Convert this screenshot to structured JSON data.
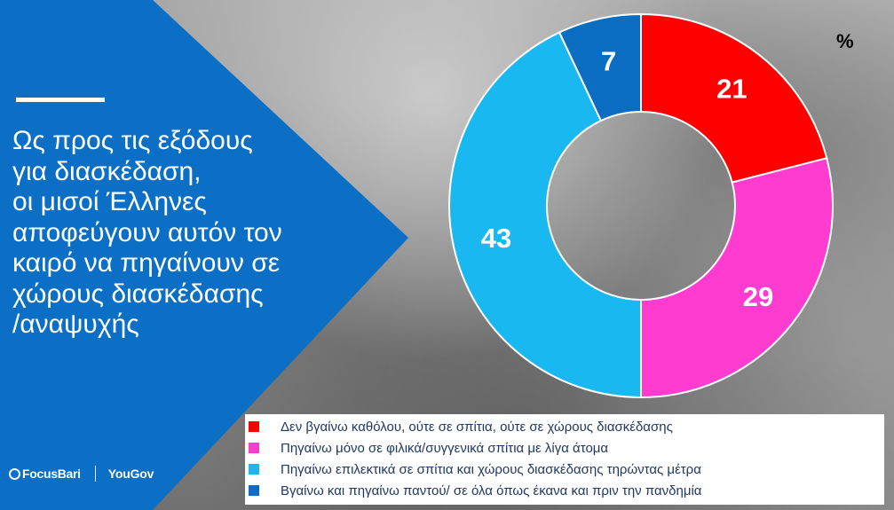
{
  "headline": "Ως προς τις εξόδους\nγια διασκέδαση,\n οι μισοί Έλληνες\nαποφεύγουν αυτόν τον\nκαιρό να πηγαίνουν σε\nχώρους διασκέδασης\n/αναψυχής",
  "logos": {
    "focusbari": "FocusBari",
    "yougov": "YouGov"
  },
  "colors": {
    "panel_blue": "#0a6fc5",
    "accent": "#ffffff"
  },
  "chart_data": {
    "type": "pie",
    "variant": "donut",
    "unit_label": "%",
    "categories": [
      "Δεν βγαίνω καθόλου, ούτε σε σπίτια, ούτε σε χώρους διασκέδασης",
      "Πηγαίνω μόνο σε φιλικά/συγγενικά σπίτια με λίγα άτομα",
      "Πηγαίνω επιλεκτικά σε σπίτια και χώρους διασκέδασης τηρώντας μέτρα",
      "Βγαίνω και πηγαίνω παντού/ σε όλα όπως έκανα και πριν την πανδημία"
    ],
    "values": [
      21,
      29,
      43,
      7
    ],
    "colors": [
      "#ff0000",
      "#ff3ccf",
      "#1ab8f0",
      "#0b6dc2"
    ],
    "legend_position": "bottom"
  }
}
